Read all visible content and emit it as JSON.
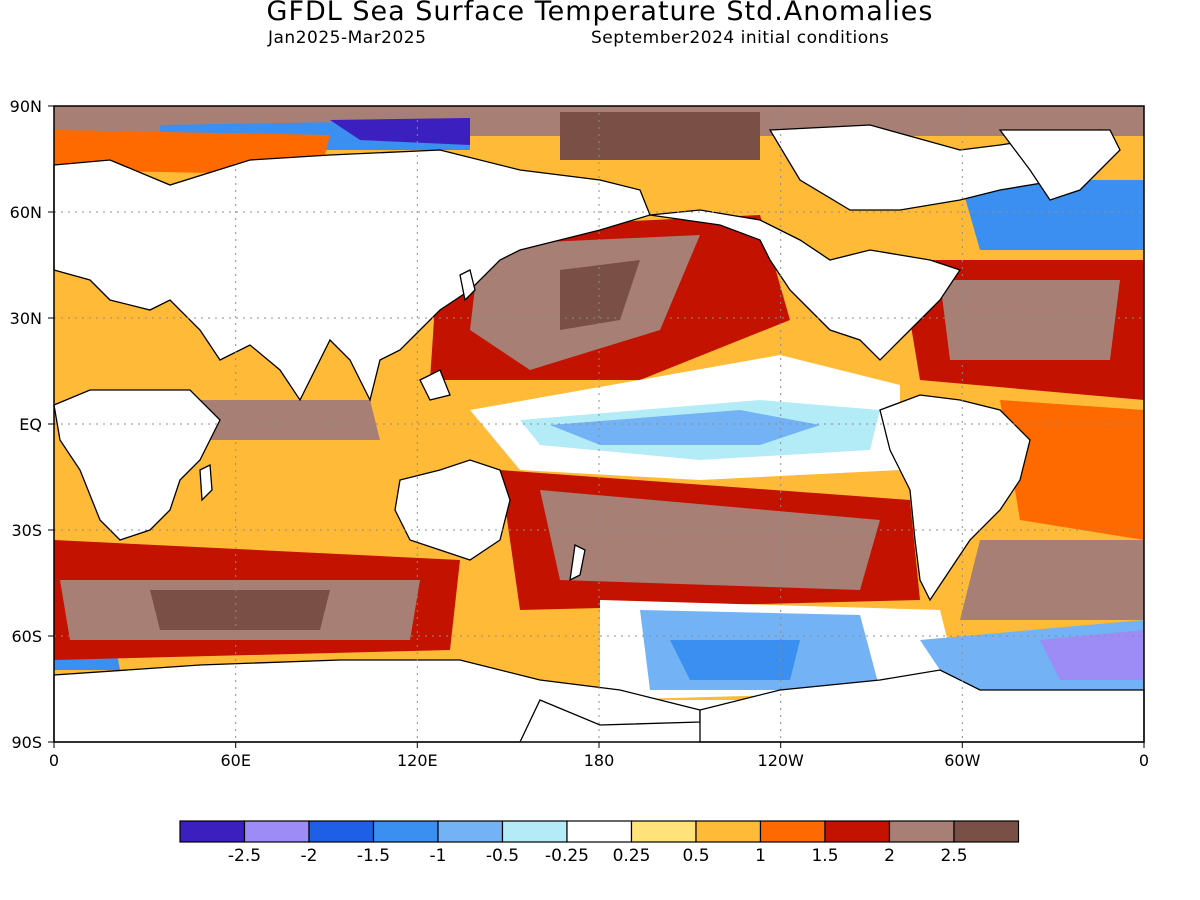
{
  "title": "GFDL Sea Surface Temperature Std.Anomalies",
  "subtitle_left": "Jan2025-Mar2025",
  "subtitle_right": "September2024 initial conditions",
  "lat_labels": [
    "90N",
    "60N",
    "30N",
    "EQ",
    "30S",
    "60S",
    "90S"
  ],
  "lon_labels": [
    "0",
    "60E",
    "120E",
    "180",
    "120W",
    "60W",
    "0"
  ],
  "legend": {
    "colors": [
      "#3c1fbf",
      "#9d8cf5",
      "#1f5fe6",
      "#3a8ff0",
      "#72b2f5",
      "#b3ecf7",
      "#ffffff",
      "#ffe37a",
      "#ffba38",
      "#ff6a00",
      "#c41200",
      "#a87f74",
      "#7a4f45"
    ],
    "labels": [
      "-2.5",
      "-2",
      "-1.5",
      "-1",
      "-0.5",
      "-0.25",
      "0.25",
      "0.5",
      "1",
      "1.5",
      "2",
      "2.5"
    ]
  }
}
